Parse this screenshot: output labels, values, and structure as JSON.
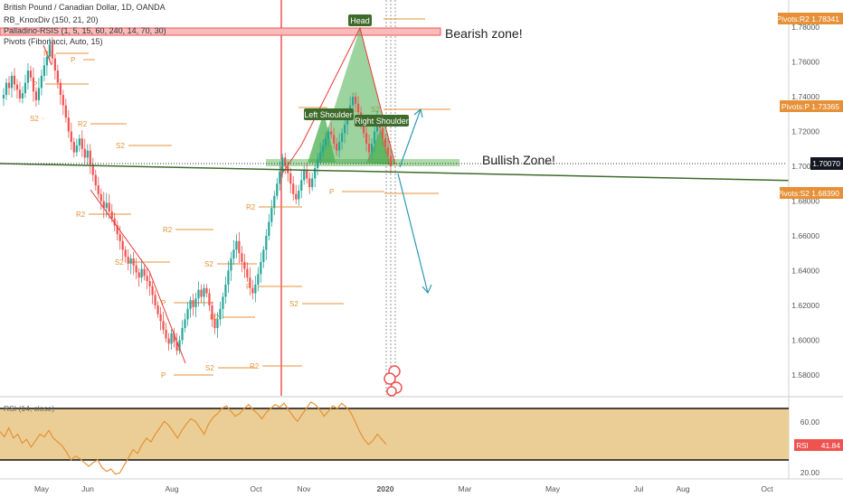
{
  "header": {
    "title": "British Pound / Canadian Dollar, 1D, OANDA",
    "indicators": [
      "RB_KnoxDiv (150, 21, 20)",
      "Palladino-RSIS (1, 5, 15, 60, 240, 14, 70, 30)",
      "Pivots (Fibonacci, Auto, 15)"
    ]
  },
  "rsi_panel": {
    "label": "RSI (14, close)",
    "badge_label": "RSI",
    "badge_value": "41.84"
  },
  "price_badges": {
    "r2": "Pivots:R2 1.78341",
    "p": "Pivots:P 1.73365",
    "current": "1.70070",
    "s2": "Pivots:S2 1.68390"
  },
  "annotations": {
    "bearish": "Bearish zone!",
    "bullish": "Bullish Zone!",
    "head": "Head",
    "left_shoulder": "Left Shoulder",
    "right_shoulder": "Right Shoulder"
  },
  "colors": {
    "up": "#26a69a",
    "down": "#ef5350",
    "pivot": "#e69138",
    "pattern_fill": "#4caf50",
    "pattern_line": "#e53935",
    "neckline": "#3d6b2b",
    "zone_red": "#f8bcbc",
    "zone_green": "#9ed49a",
    "rsi_band": "#e9c98a",
    "rsi_line": "#e69138",
    "arrow": "#2e9ab3",
    "label_green": "#3d6b2b"
  },
  "chart_data": {
    "type": "candlestick",
    "y_axis_ticks": [
      "1.78000",
      "1.76000",
      "1.74000",
      "1.72000",
      "1.70000",
      "1.68000",
      "1.66000",
      "1.64000",
      "1.62000",
      "1.60000",
      "1.58000"
    ],
    "ylim": [
      1.57,
      1.79
    ],
    "x_axis_ticks": [
      "May",
      "Jun",
      "Aug",
      "Oct",
      "Nov",
      "2020",
      "Mar",
      "May",
      "Jul",
      "Aug",
      "Oct"
    ],
    "rsi_ticks": [
      "60.00",
      "20.00"
    ],
    "rsi_ylim": [
      15,
      75
    ],
    "rsi_band": [
      30,
      70
    ],
    "pivot_labels": [
      "R2",
      "P",
      "S2",
      "R2",
      "S2",
      "R2",
      "P",
      "S2",
      "R2",
      "P",
      "S2",
      "R2",
      "P",
      "S2",
      "R2",
      "P",
      "S2",
      "R2",
      "P",
      "S2"
    ],
    "close": [
      1.741,
      1.748,
      1.745,
      1.752,
      1.747,
      1.744,
      1.739,
      1.742,
      1.748,
      1.755,
      1.751,
      1.743,
      1.738,
      1.745,
      1.752,
      1.758,
      1.763,
      1.77,
      1.762,
      1.755,
      1.748,
      1.741,
      1.735,
      1.728,
      1.72,
      1.714,
      1.708,
      1.712,
      1.716,
      1.71,
      1.705,
      1.709,
      1.701,
      1.695,
      1.689,
      1.684,
      1.68,
      1.676,
      1.679,
      1.674,
      1.67,
      1.666,
      1.661,
      1.657,
      1.652,
      1.648,
      1.644,
      1.647,
      1.643,
      1.639,
      1.636,
      1.641,
      1.637,
      1.634,
      1.631,
      1.626,
      1.62,
      1.615,
      1.611,
      1.606,
      1.601,
      1.598,
      1.604,
      1.599,
      1.594,
      1.6,
      1.607,
      1.612,
      1.618,
      1.623,
      1.619,
      1.624,
      1.629,
      1.625,
      1.63,
      1.627,
      1.62,
      1.612,
      1.607,
      1.612,
      1.618,
      1.625,
      1.632,
      1.64,
      1.647,
      1.652,
      1.657,
      1.65,
      1.645,
      1.641,
      1.636,
      1.63,
      1.627,
      1.632,
      1.638,
      1.645,
      1.652,
      1.66,
      1.668,
      1.676,
      1.683,
      1.69,
      1.697,
      1.705,
      1.7,
      1.696,
      1.69,
      1.684,
      1.681,
      1.686,
      1.692,
      1.698,
      1.693,
      1.688,
      1.693,
      1.699,
      1.704,
      1.708,
      1.712,
      1.716,
      1.72,
      1.718,
      1.713,
      1.709,
      1.714,
      1.719,
      1.724,
      1.73,
      1.735,
      1.74,
      1.736,
      1.731,
      1.725,
      1.719,
      1.713,
      1.708,
      1.713,
      1.72,
      1.726,
      1.722,
      1.716,
      1.711,
      1.706,
      1.7
    ]
  }
}
